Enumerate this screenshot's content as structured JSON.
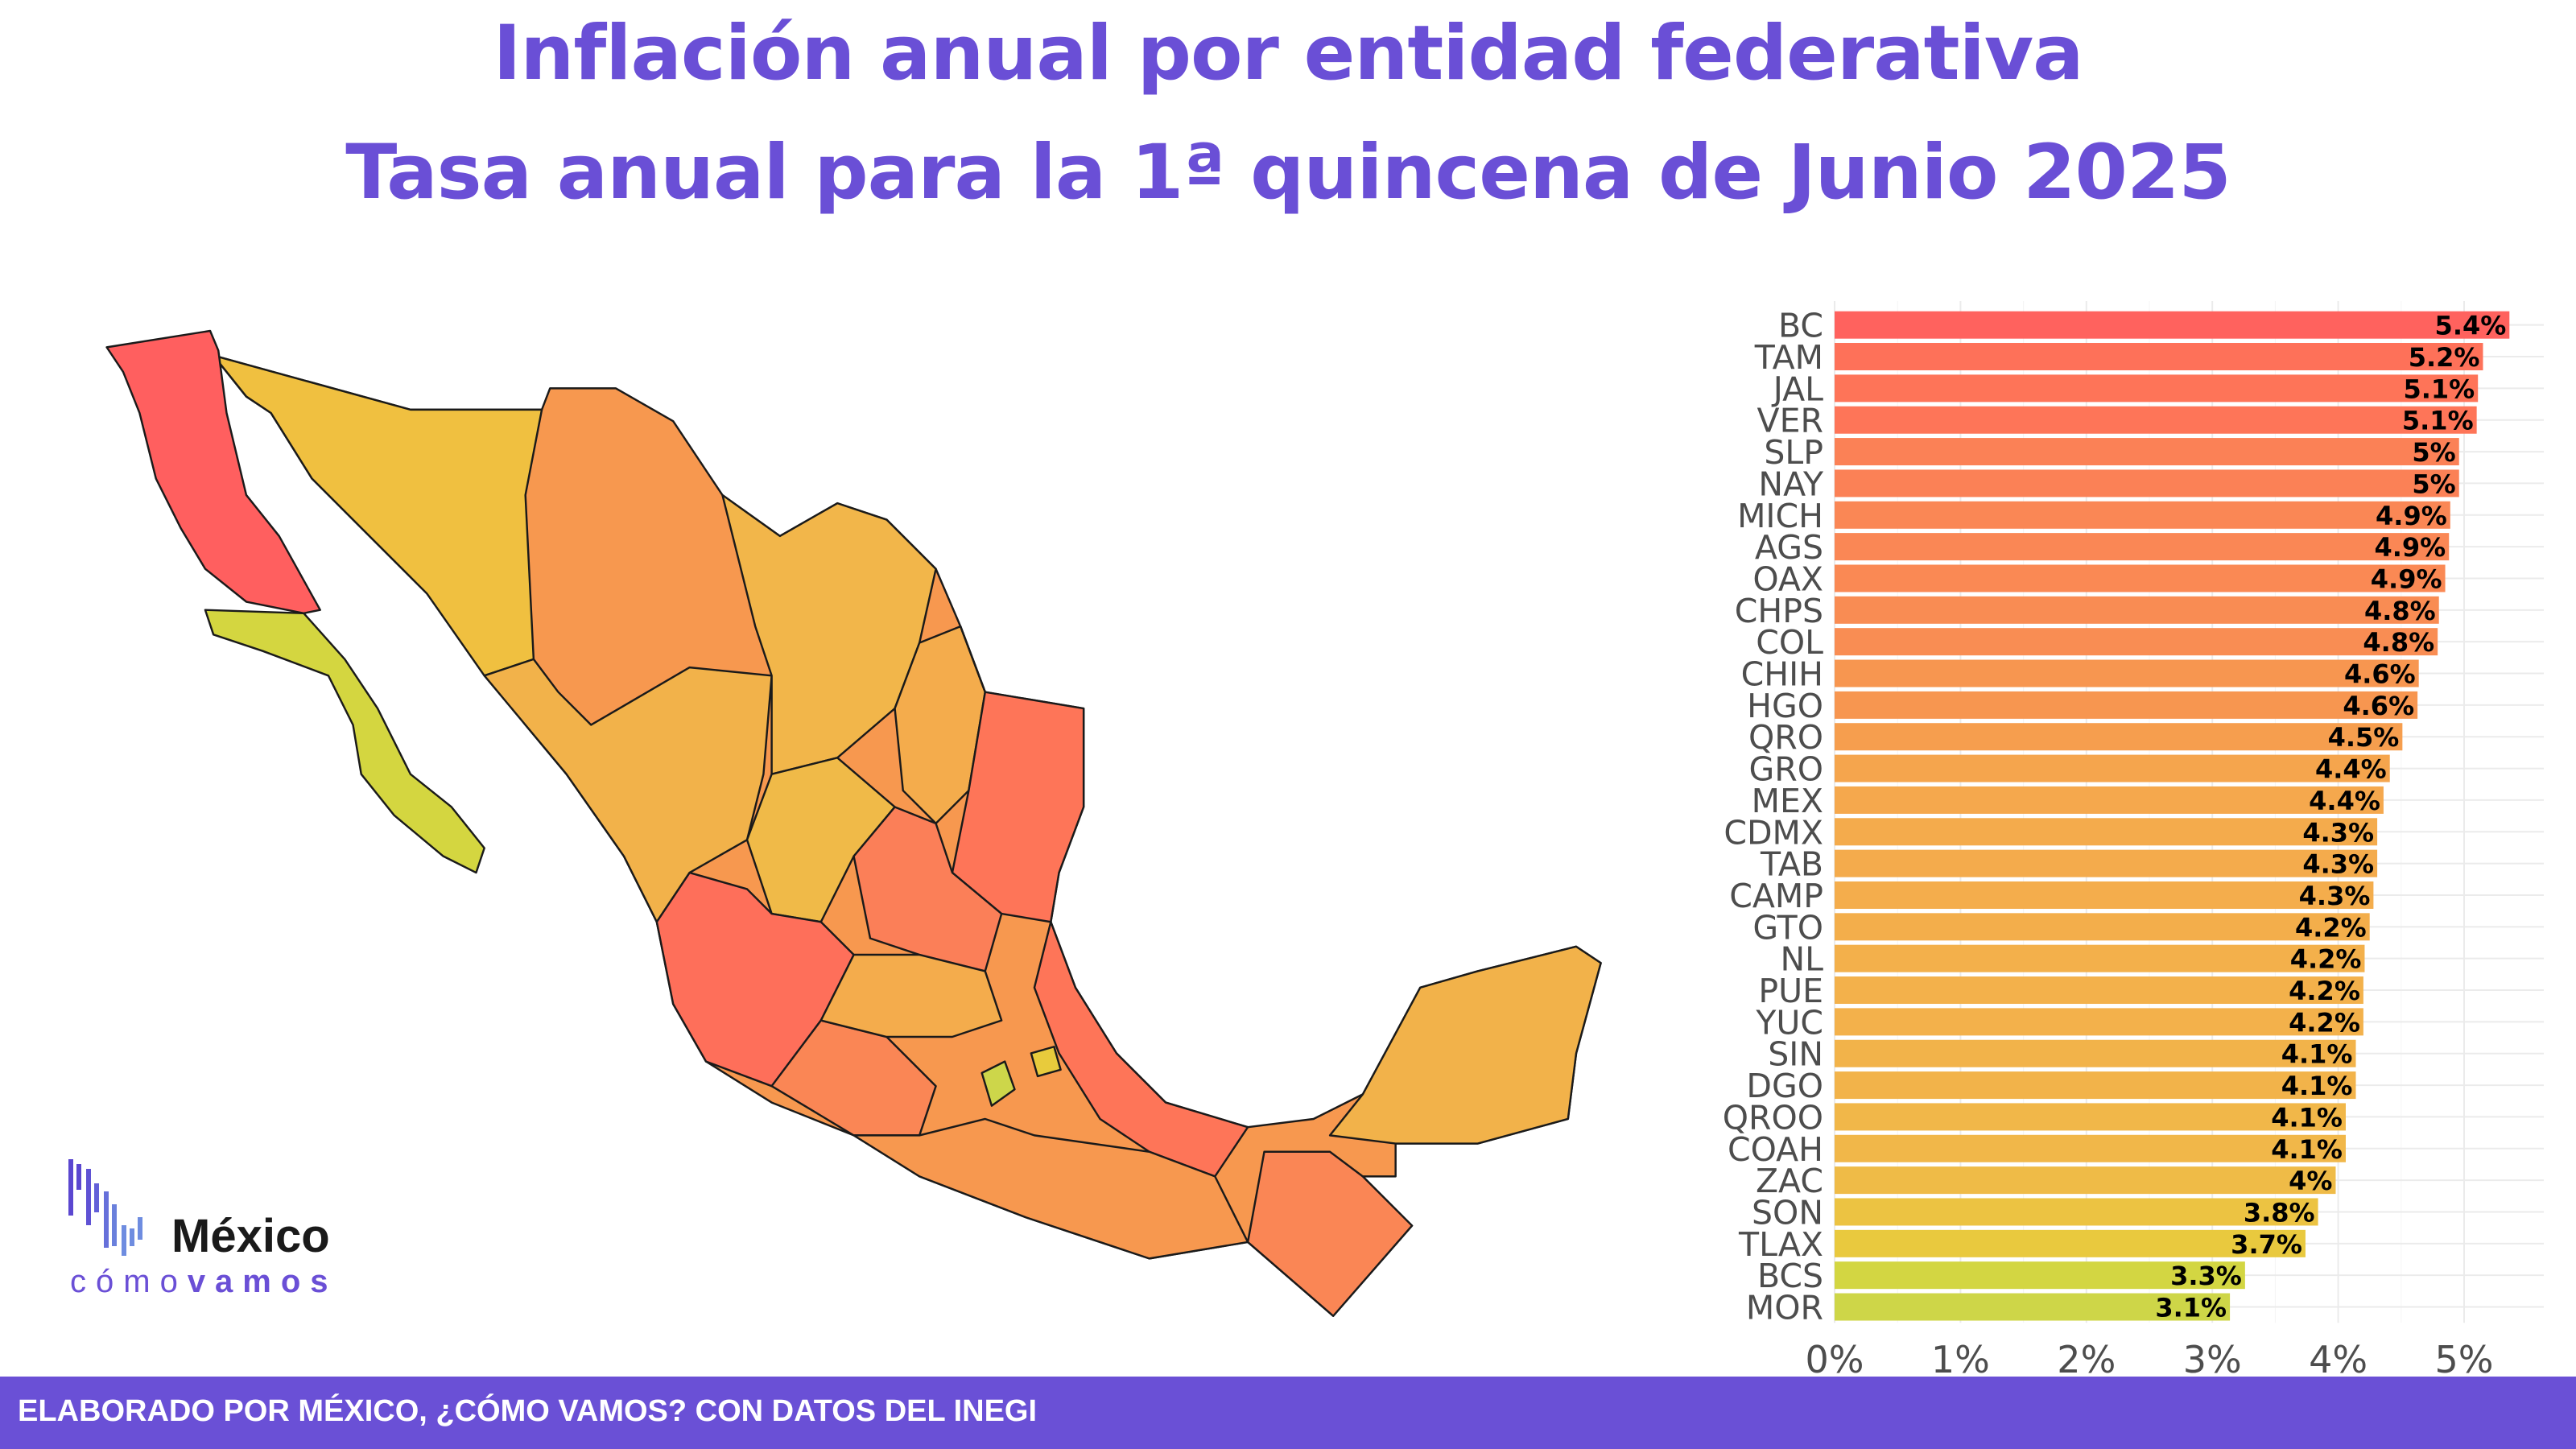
{
  "title": {
    "line1": "Inflación anual por entidad federativa",
    "line2": "Tasa anual para la 1ª quincena de Junio 2025"
  },
  "logo": {
    "brand": "México",
    "tagline_light": "cómo",
    "tagline_bold": "vamos"
  },
  "footer": {
    "credit": "ELABORADO POR MÉXICO, ¿CÓMO VAMOS? CON DATOS DEL INEGI"
  },
  "colors": {
    "brand": "#6A4FD6",
    "footer": "#6A50D6",
    "map_border": "#1a1a1a"
  },
  "chart_data": {
    "type": "bar",
    "orientation": "horizontal",
    "title": "Tasa anual para la 1ª quincena de Junio 2025",
    "xlabel": "",
    "ylabel": "",
    "xlim": [
      0,
      5.6
    ],
    "grid": true,
    "ticks": [
      {
        "v": 0,
        "label": "0%"
      },
      {
        "v": 1,
        "label": "1%"
      },
      {
        "v": 2,
        "label": "2%"
      },
      {
        "v": 3,
        "label": "3%"
      },
      {
        "v": 4,
        "label": "4%"
      },
      {
        "v": 5,
        "label": "5%"
      }
    ],
    "colorscale": [
      [
        3.1,
        "#CDD64A"
      ],
      [
        3.3,
        "#D4D640"
      ],
      [
        3.7,
        "#E8CB3C"
      ],
      [
        4.0,
        "#F0BA48"
      ],
      [
        4.3,
        "#F4AC4C"
      ],
      [
        4.6,
        "#F7984F"
      ],
      [
        4.9,
        "#FA8655"
      ],
      [
        5.1,
        "#FE7558"
      ],
      [
        5.4,
        "#FF5F5F"
      ]
    ],
    "categories": [
      "BC",
      "TAM",
      "JAL",
      "VER",
      "SLP",
      "NAY",
      "MICH",
      "AGS",
      "OAX",
      "CHPS",
      "COL",
      "CHIH",
      "HGO",
      "QRO",
      "GRO",
      "MEX",
      "CDMX",
      "TAB",
      "CAMP",
      "GTO",
      "NL",
      "PUE",
      "YUC",
      "SIN",
      "DGO",
      "QROO",
      "COAH",
      "ZAC",
      "SON",
      "TLAX",
      "BCS",
      "MOR"
    ],
    "values": [
      5.36,
      5.15,
      5.11,
      5.1,
      4.96,
      4.96,
      4.89,
      4.88,
      4.85,
      4.8,
      4.79,
      4.64,
      4.63,
      4.51,
      4.41,
      4.36,
      4.31,
      4.31,
      4.28,
      4.25,
      4.21,
      4.2,
      4.2,
      4.14,
      4.14,
      4.06,
      4.06,
      3.98,
      3.84,
      3.74,
      3.26,
      3.14
    ],
    "labels": [
      "5.4%",
      "5.2%",
      "5.1%",
      "5.1%",
      "5%",
      "5%",
      "4.9%",
      "4.9%",
      "4.9%",
      "4.8%",
      "4.8%",
      "4.6%",
      "4.6%",
      "4.5%",
      "4.4%",
      "4.4%",
      "4.3%",
      "4.3%",
      "4.3%",
      "4.2%",
      "4.2%",
      "4.2%",
      "4.2%",
      "4.1%",
      "4.1%",
      "4.1%",
      "4.1%",
      "4%",
      "3.8%",
      "3.7%",
      "3.3%",
      "3.1%"
    ]
  }
}
